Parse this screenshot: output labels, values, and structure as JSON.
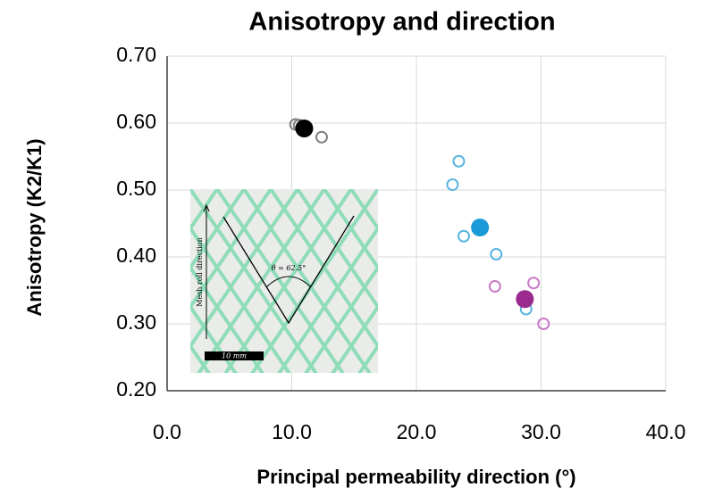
{
  "chart_data": {
    "type": "scatter",
    "title": "Anisotropy and direction",
    "xlabel": "Principal permeability direction (°)",
    "ylabel": "Anisotropy (K2/K1)",
    "xlim": [
      0,
      40
    ],
    "xticks": [
      {
        "value": 0,
        "label": "0.0"
      },
      {
        "value": 10,
        "label": "10.0"
      },
      {
        "value": 20,
        "label": "20.0"
      },
      {
        "value": 30,
        "label": "30.0"
      },
      {
        "value": 40,
        "label": "40.0"
      }
    ],
    "ylim": [
      0.2,
      0.7
    ],
    "yticks": [
      {
        "value": 0.2,
        "label": "0.20"
      },
      {
        "value": 0.3,
        "label": "0.30"
      },
      {
        "value": 0.4,
        "label": "0.40"
      },
      {
        "value": 0.5,
        "label": "0.50"
      },
      {
        "value": 0.6,
        "label": "0.60"
      },
      {
        "value": 0.7,
        "label": "0.70"
      }
    ],
    "grid": true,
    "series": [
      {
        "color": "#808080",
        "marker": "open",
        "x": [
          10.3,
          10.6,
          12.4
        ],
        "values": [
          0.598,
          0.597,
          0.579
        ]
      },
      {
        "color": "#000000",
        "marker": "filled",
        "x": [
          11.0
        ],
        "values": [
          0.592
        ]
      },
      {
        "color": "#5ab4e0",
        "marker": "open",
        "x": [
          23.4,
          22.9,
          23.8,
          26.4,
          28.8
        ],
        "values": [
          0.543,
          0.508,
          0.431,
          0.404,
          0.322
        ]
      },
      {
        "color": "#1a9ad6",
        "marker": "filled",
        "x": [
          25.1
        ],
        "values": [
          0.444
        ]
      },
      {
        "color": "#c77bc7",
        "marker": "open",
        "x": [
          26.3,
          29.4,
          30.2
        ],
        "values": [
          0.356,
          0.361,
          0.3
        ]
      },
      {
        "color": "#9b2a8f",
        "marker": "filled",
        "x": [
          28.7
        ],
        "values": [
          0.337
        ]
      }
    ],
    "inset": {
      "direction_label": "Mesh roll direction",
      "angle_label": "θ = 62.5°",
      "scale_label": "10 mm"
    }
  }
}
